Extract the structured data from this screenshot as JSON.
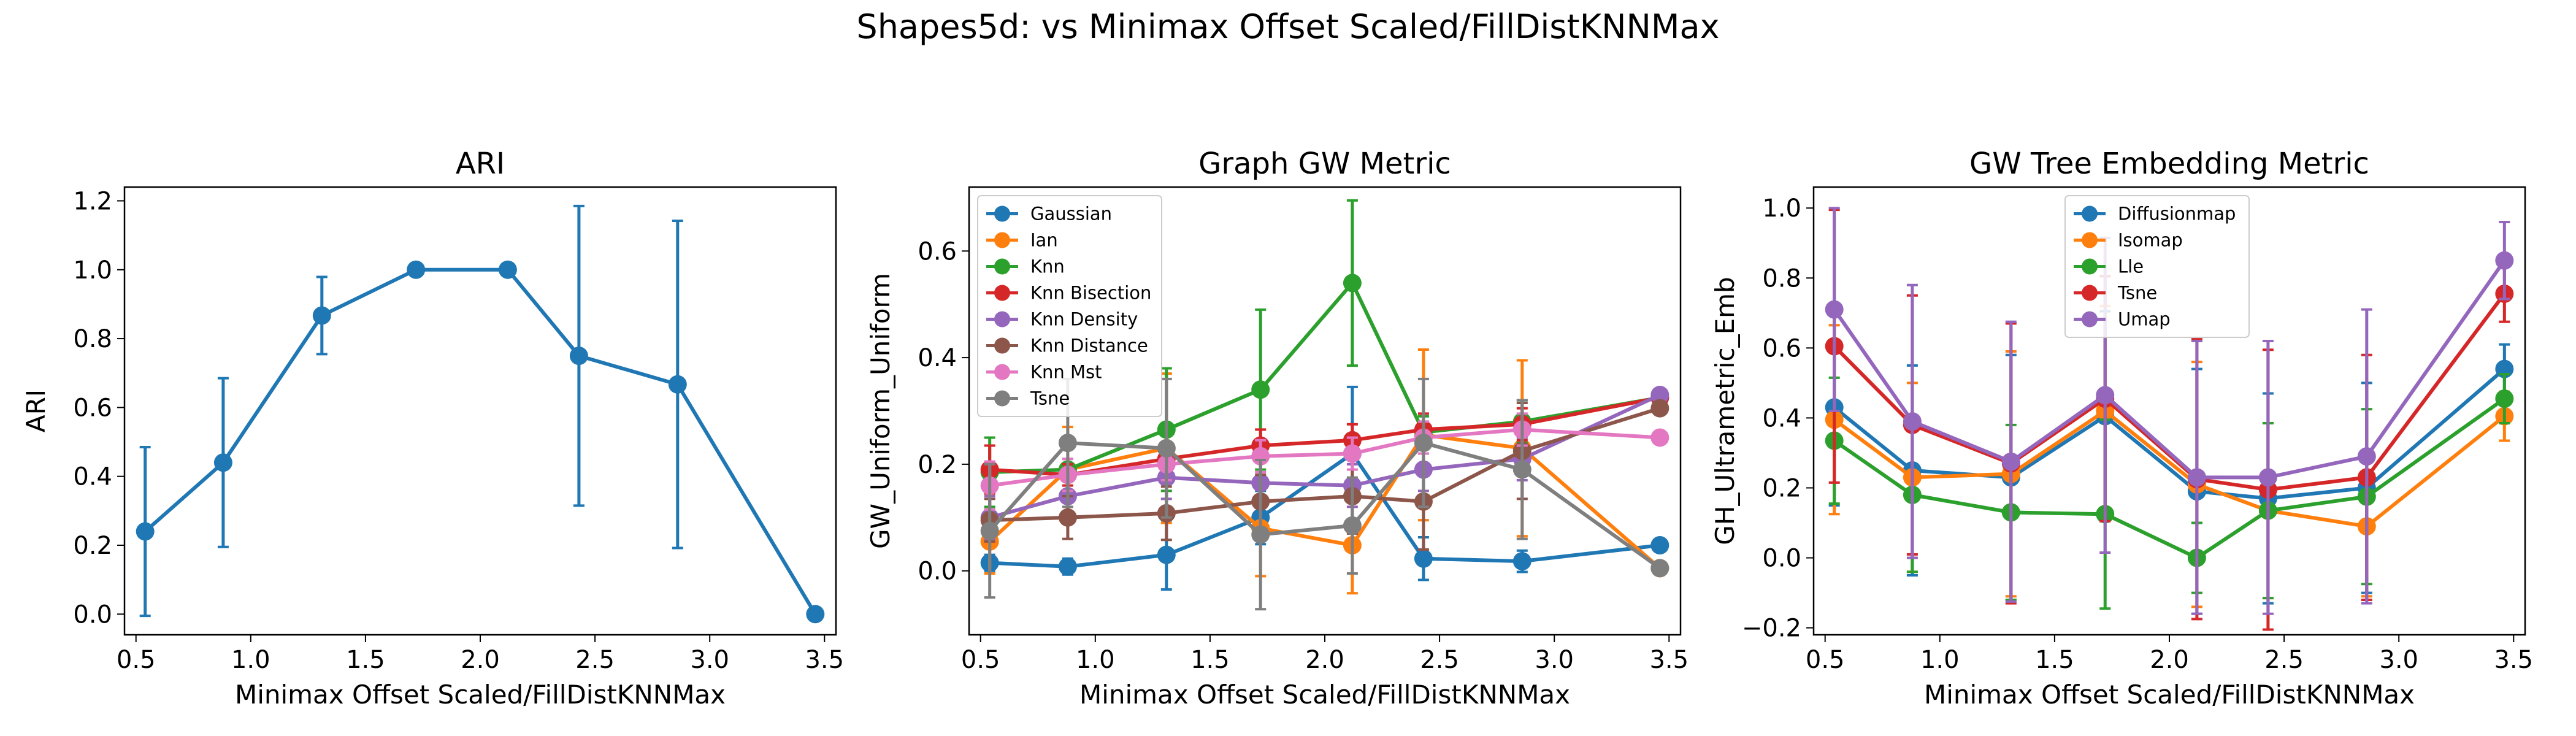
{
  "figure": {
    "suptitle": "Shapes5d: vs Minimax Offset Scaled/FillDistKNNMax"
  },
  "chart_data": [
    {
      "type": "line",
      "title": "ARI",
      "xlabel": "Minimax Offset Scaled/FillDistKNNMax",
      "ylabel": "ARI",
      "xlim": [
        0.45,
        3.55
      ],
      "ylim": [
        -0.06,
        1.24
      ],
      "xticks": [
        0.5,
        1.0,
        1.5,
        2.0,
        2.5,
        3.0,
        3.5
      ],
      "xtick_labels": [
        "0.5",
        "1.0",
        "1.5",
        "2.0",
        "2.5",
        "3.0",
        "3.5"
      ],
      "yticks": [
        0.0,
        0.2,
        0.4,
        0.6,
        0.8,
        1.0,
        1.2
      ],
      "ytick_labels": [
        "0.0",
        "0.2",
        "0.4",
        "0.6",
        "0.8",
        "1.0",
        "1.2"
      ],
      "x": [
        0.54,
        0.88,
        1.31,
        1.72,
        2.12,
        2.43,
        2.86,
        3.46
      ],
      "legend": null,
      "series": [
        {
          "color": "#1f77b4",
          "values": [
            0.24,
            0.44,
            0.867,
            1.0,
            1.0,
            0.75,
            0.667,
            0.0
          ],
          "err": [
            0.245,
            0.245,
            0.112,
            0.0,
            0.0,
            0.435,
            0.475,
            0.0
          ]
        }
      ]
    },
    {
      "type": "line",
      "title": "Graph GW Metric",
      "xlabel": "Minimax Offset Scaled/FillDistKNNMax",
      "ylabel": "GW_Uniform_Uniform",
      "xlim": [
        0.45,
        3.55
      ],
      "ylim": [
        -0.12,
        0.72
      ],
      "xticks": [
        0.5,
        1.0,
        1.5,
        2.0,
        2.5,
        3.0,
        3.5
      ],
      "xtick_labels": [
        "0.5",
        "1.0",
        "1.5",
        "2.0",
        "2.5",
        "3.0",
        "3.5"
      ],
      "yticks": [
        0.0,
        0.2,
        0.4,
        0.6
      ],
      "ytick_labels": [
        "0.0",
        "0.2",
        "0.4",
        "0.6"
      ],
      "x": [
        0.54,
        0.88,
        1.31,
        1.72,
        2.12,
        2.43,
        2.86,
        3.46
      ],
      "legend": "upper-left",
      "series": [
        {
          "name": "Gaussian",
          "color": "#1f77b4",
          "values": [
            0.015,
            0.008,
            0.03,
            0.1,
            0.22,
            0.023,
            0.018,
            0.048
          ],
          "err": [
            0.015,
            0.015,
            0.065,
            0.05,
            0.125,
            0.04,
            0.02,
            0.005
          ]
        },
        {
          "name": "Ian",
          "color": "#ff7f0e",
          "values": [
            0.055,
            0.19,
            0.23,
            0.08,
            0.048,
            0.255,
            0.23,
            0.005
          ],
          "err": [
            0.06,
            0.08,
            0.14,
            0.09,
            0.09,
            0.16,
            0.165,
            0.005
          ]
        },
        {
          "name": "Knn",
          "color": "#2ca02c",
          "values": [
            0.185,
            0.19,
            0.265,
            0.34,
            0.54,
            0.26,
            0.28,
            0.325
          ],
          "err": [
            0.065,
            0.02,
            0.115,
            0.15,
            0.155,
            0.03,
            0.04,
            0.005
          ]
        },
        {
          "name": "Knn Bisection",
          "color": "#d62728",
          "values": [
            0.19,
            0.18,
            0.21,
            0.235,
            0.245,
            0.265,
            0.275,
            0.325
          ],
          "err": [
            0.045,
            0.02,
            0.03,
            0.03,
            0.03,
            0.03,
            0.03,
            0.005
          ]
        },
        {
          "name": "Knn Density",
          "color": "#9467bd",
          "values": [
            0.1,
            0.14,
            0.175,
            0.165,
            0.16,
            0.19,
            0.21,
            0.33
          ],
          "err": [
            0.04,
            0.03,
            0.04,
            0.04,
            0.04,
            0.04,
            0.04,
            0.005
          ]
        },
        {
          "name": "Knn Distance",
          "color": "#8c564b",
          "values": [
            0.095,
            0.1,
            0.108,
            0.13,
            0.14,
            0.13,
            0.225,
            0.305
          ],
          "err": [
            0.04,
            0.04,
            0.05,
            0.05,
            0.07,
            0.09,
            0.09,
            0.01
          ]
        },
        {
          "name": "Knn Mst",
          "color": "#e377c2",
          "values": [
            0.16,
            0.18,
            0.2,
            0.215,
            0.22,
            0.25,
            0.265,
            0.25
          ],
          "err": [
            0.045,
            0.03,
            0.03,
            0.03,
            0.03,
            0.03,
            0.03,
            0.005
          ]
        },
        {
          "name": "Tsne",
          "color": "#7f7f7f",
          "values": [
            0.075,
            0.24,
            0.23,
            0.068,
            0.085,
            0.24,
            0.19,
            0.005
          ],
          "err": [
            0.125,
            0.12,
            0.13,
            0.14,
            0.09,
            0.12,
            0.13,
            0.005
          ]
        }
      ]
    },
    {
      "type": "line",
      "title": "GW Tree Embedding Metric",
      "xlabel": "Minimax Offset Scaled/FillDistKNNMax",
      "ylabel": "GH_Ultrametric_Emb",
      "xlim": [
        0.45,
        3.55
      ],
      "ylim": [
        -0.22,
        1.06
      ],
      "xticks": [
        0.5,
        1.0,
        1.5,
        2.0,
        2.5,
        3.0,
        3.5
      ],
      "xtick_labels": [
        "0.5",
        "1.0",
        "1.5",
        "2.0",
        "2.5",
        "3.0",
        "3.5"
      ],
      "yticks": [
        -0.2,
        0.0,
        0.2,
        0.4,
        0.6,
        0.8,
        1.0
      ],
      "ytick_labels": [
        "−0.2",
        "0.0",
        "0.2",
        "0.4",
        "0.6",
        "0.8",
        "1.0"
      ],
      "x": [
        0.54,
        0.88,
        1.31,
        1.72,
        2.12,
        2.43,
        2.86,
        3.46
      ],
      "legend": "upper-center",
      "series": [
        {
          "name": "Diffusionmap",
          "color": "#1f77b4",
          "values": [
            0.43,
            0.25,
            0.23,
            0.405,
            0.19,
            0.17,
            0.2,
            0.54
          ],
          "err": [
            0.28,
            0.3,
            0.35,
            0.3,
            0.35,
            0.3,
            0.3,
            0.07
          ]
        },
        {
          "name": "Isomap",
          "color": "#ff7f0e",
          "values": [
            0.395,
            0.23,
            0.24,
            0.42,
            0.21,
            0.135,
            0.09,
            0.405
          ],
          "err": [
            0.27,
            0.27,
            0.35,
            0.3,
            0.35,
            0.25,
            0.2,
            0.07
          ]
        },
        {
          "name": "Lle",
          "color": "#2ca02c",
          "values": [
            0.335,
            0.18,
            0.13,
            0.125,
            0.0,
            0.135,
            0.175,
            0.455
          ],
          "err": [
            0.18,
            0.22,
            0.25,
            0.27,
            0.1,
            0.25,
            0.25,
            0.07
          ]
        },
        {
          "name": "Tsne",
          "color": "#d62728",
          "values": [
            0.605,
            0.38,
            0.27,
            0.455,
            0.225,
            0.195,
            0.23,
            0.755
          ],
          "err": [
            0.39,
            0.37,
            0.4,
            0.35,
            0.4,
            0.4,
            0.35,
            0.08
          ]
        },
        {
          "name": "Umap",
          "color": "#9467bd",
          "values": [
            0.71,
            0.39,
            0.275,
            0.465,
            0.23,
            0.23,
            0.29,
            0.85
          ],
          "err": [
            0.29,
            0.39,
            0.4,
            0.45,
            0.39,
            0.39,
            0.42,
            0.11
          ]
        }
      ]
    }
  ]
}
